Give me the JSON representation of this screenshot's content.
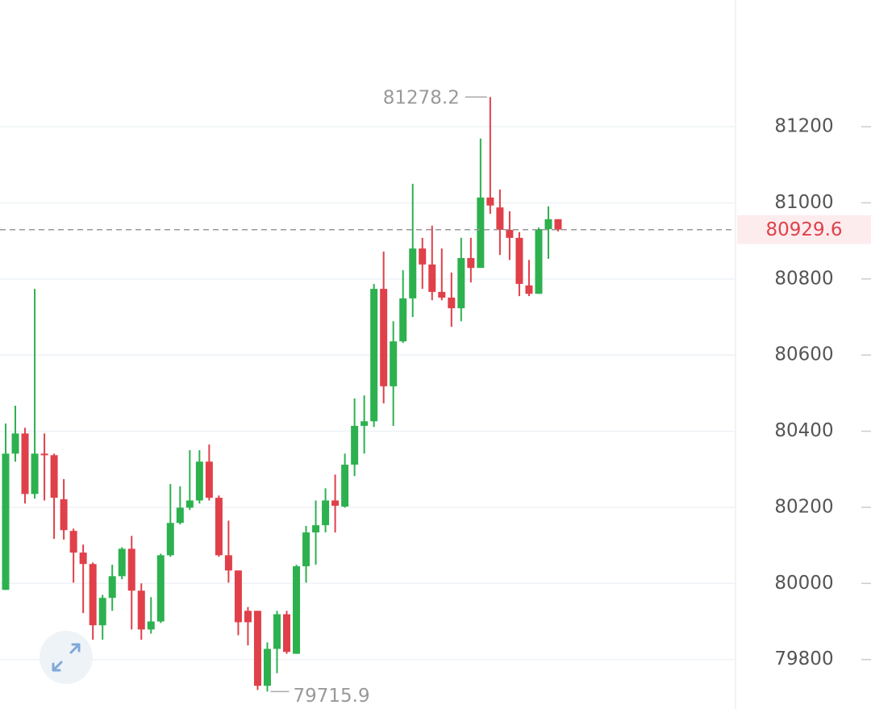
{
  "chart_data": {
    "type": "candlestick",
    "open": [
      79983,
      80341,
      80394,
      80235,
      80341,
      80337,
      80221,
      80138,
      80081,
      80051,
      79890,
      79962,
      80019,
      80091,
      79981,
      79879,
      79900,
      80074,
      80159,
      80199,
      80218,
      80320,
      80225,
      80074,
      80034,
      79928,
      79928,
      79731,
      79828,
      79919,
      79815,
      80045,
      80134,
      80153,
      80218,
      80202,
      80312,
      80414,
      80426,
      80774,
      80518,
      80636,
      80749,
      80880,
      80838,
      80766,
      80751,
      80723,
      80855,
      80829,
      81014,
      80988,
      80929,
      80908,
      80783,
      80761,
      80931,
      80957
    ],
    "high": [
      80420,
      80467,
      80409,
      80774,
      80394,
      80341,
      80274,
      80144,
      80102,
      80055,
      79970,
      80049,
      80095,
      80125,
      80000,
      79964,
      80078,
      80261,
      80255,
      80350,
      80350,
      80365,
      80231,
      80165,
      80034,
      79938,
      79928,
      79845,
      79928,
      79928,
      80049,
      80151,
      80218,
      80250,
      80286,
      80341,
      80486,
      80494,
      80787,
      80872,
      80689,
      80823,
      81050,
      80908,
      80940,
      80880,
      80817,
      80908,
      80908,
      81169,
      81278.2,
      81035,
      80978,
      80923,
      80850,
      80935,
      80991,
      80957
    ],
    "low": [
      79983,
      80320,
      80210,
      80223,
      80218,
      80117,
      80115,
      80002,
      79922,
      79852,
      79852,
      79928,
      80011,
      79879,
      79852,
      79868,
      79896,
      80070,
      80155,
      80193,
      80210,
      80218,
      80070,
      80002,
      79864,
      79837,
      79720,
      79715.9,
      79764,
      79815,
      79815,
      80002,
      80049,
      80134,
      80134,
      80199,
      80282,
      80341,
      80411,
      80473,
      80414,
      80632,
      80700,
      80774,
      80744,
      80744,
      80674,
      80689,
      80791,
      80829,
      80971,
      80863,
      80850,
      80755,
      80755,
      80761,
      80853,
      80925
    ],
    "close": [
      80341,
      80394,
      80235,
      80341,
      80338,
      80225,
      80140,
      80081,
      80051,
      79890,
      79962,
      80019,
      80091,
      79981,
      79879,
      79900,
      80074,
      80159,
      80199,
      80218,
      80320,
      80225,
      80074,
      80034,
      79898,
      79898,
      79731,
      79828,
      79919,
      79820,
      80045,
      80134,
      80153,
      80218,
      80204,
      80312,
      80414,
      80426,
      80774,
      80518,
      80636,
      80749,
      80880,
      80838,
      80766,
      80751,
      80723,
      80855,
      80829,
      81014,
      80993,
      80929,
      80908,
      80787,
      80761,
      80931,
      80957,
      80929.6
    ],
    "up_color": "#2db14f",
    "down_color": "#e0404a",
    "ylim": [
      79670,
      81533
    ],
    "yticks": [
      79800,
      80000,
      80200,
      80400,
      80600,
      80800,
      81000,
      81200
    ],
    "grid": true
  }
}
